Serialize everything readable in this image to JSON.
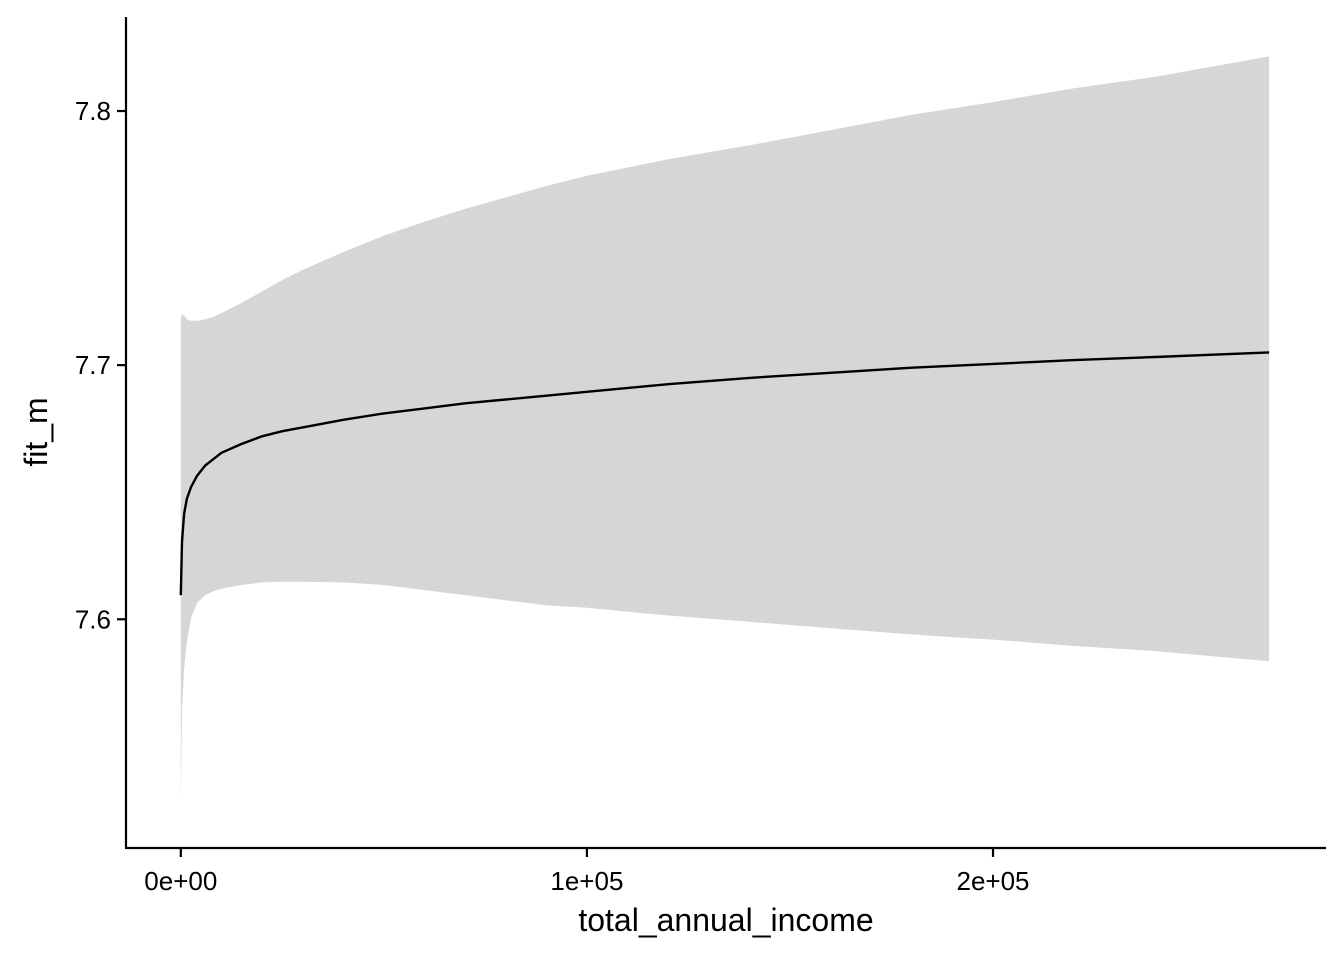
{
  "chart_data": {
    "type": "line",
    "title": "",
    "xlabel": "total_annual_income",
    "ylabel": "fit_m",
    "xlim": [
      -13500,
      282000
    ],
    "ylim": [
      7.51,
      7.837
    ],
    "grid": false,
    "legend": "none",
    "x_ticks": [
      {
        "value": 0,
        "label": "0e+00"
      },
      {
        "value": 100000,
        "label": "1e+05"
      },
      {
        "value": 200000,
        "label": "2e+05"
      }
    ],
    "y_ticks": [
      {
        "value": 7.6,
        "label": "7.6"
      },
      {
        "value": 7.7,
        "label": "7.7"
      },
      {
        "value": 7.8,
        "label": "7.8"
      }
    ],
    "colors": {
      "line": "#000000",
      "ribbon": "#d6d6d6",
      "axis": "#000000"
    },
    "series": [
      {
        "x": [
          0,
          300,
          800,
          1500,
          2500,
          4000,
          6000,
          8000,
          10000,
          15000,
          20000,
          25000,
          30000,
          40000,
          50000,
          60000,
          70000,
          80000,
          90000,
          100000,
          120000,
          140000,
          160000,
          180000,
          200000,
          220000,
          240000,
          268000
        ],
        "fit": [
          7.6095,
          7.6305,
          7.6415,
          7.6475,
          7.652,
          7.6565,
          7.6605,
          7.663,
          7.6655,
          7.669,
          7.672,
          7.674,
          7.6755,
          7.6785,
          7.681,
          7.683,
          7.685,
          7.6865,
          7.688,
          7.6895,
          7.6925,
          7.695,
          7.697,
          7.699,
          7.7005,
          7.702,
          7.7032,
          7.705
        ],
        "lower": [
          7.5285,
          7.5635,
          7.5805,
          7.5915,
          7.6005,
          7.6065,
          7.6095,
          7.611,
          7.612,
          7.6135,
          7.6145,
          7.6148,
          7.6148,
          7.6145,
          7.6135,
          7.6115,
          7.6095,
          7.6075,
          7.6055,
          7.6045,
          7.6015,
          7.599,
          7.5965,
          7.594,
          7.592,
          7.5895,
          7.5875,
          7.5835
        ],
        "upper": [
          7.7185,
          7.72,
          7.7195,
          7.718,
          7.7175,
          7.7175,
          7.718,
          7.719,
          7.7205,
          7.7245,
          7.729,
          7.7335,
          7.7375,
          7.7445,
          7.751,
          7.7565,
          7.7615,
          7.766,
          7.7705,
          7.7745,
          7.781,
          7.7865,
          7.7925,
          7.7985,
          7.8035,
          7.809,
          7.8135,
          7.8215
        ]
      }
    ]
  }
}
